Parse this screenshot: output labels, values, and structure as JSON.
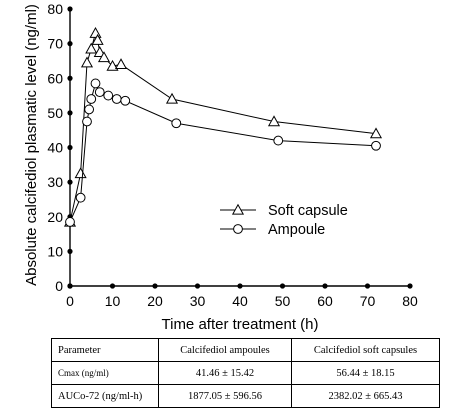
{
  "chart_data": {
    "type": "line",
    "xlabel": "Time after treatment (h)",
    "ylabel": "Absolute calcifediol plasmatic level (ng/ml)",
    "xlim": [
      0,
      80
    ],
    "ylim": [
      0,
      80
    ],
    "x_ticks": [
      0,
      10,
      20,
      30,
      40,
      50,
      60,
      70,
      80
    ],
    "y_ticks": [
      0,
      10,
      20,
      30,
      40,
      50,
      60,
      70,
      80
    ],
    "grid": false,
    "legend_position": "right",
    "series": [
      {
        "name": "Soft capsule",
        "marker": "triangle",
        "points": [
          [
            0,
            18.5
          ],
          [
            2.5,
            32.5
          ],
          [
            4,
            64.5
          ],
          [
            5,
            68.5
          ],
          [
            6,
            73
          ],
          [
            6.5,
            71
          ],
          [
            7,
            67.5
          ],
          [
            8,
            66
          ],
          [
            10,
            63.5
          ],
          [
            12,
            64
          ],
          [
            24,
            54
          ],
          [
            48,
            47.5
          ],
          [
            72,
            44
          ]
        ]
      },
      {
        "name": "Ampoule",
        "marker": "circle",
        "points": [
          [
            0,
            18.5
          ],
          [
            2.5,
            25.5
          ],
          [
            4,
            47.5
          ],
          [
            4.5,
            51
          ],
          [
            5,
            54
          ],
          [
            6,
            58.5
          ],
          [
            7,
            56
          ],
          [
            9,
            55
          ],
          [
            11,
            54
          ],
          [
            13,
            53.5
          ],
          [
            25,
            47
          ],
          [
            49,
            42
          ],
          [
            72,
            40.5
          ]
        ]
      }
    ]
  },
  "table": {
    "headers": [
      "Parameter",
      "Calcifediol  ampoules",
      "Calcifediol  soft  capsules"
    ],
    "rows": [
      {
        "param": "Cmax  (ng/ml)",
        "ampoules": "41.46  ±  15.42",
        "soft_capsules": "56.44  ±  18.15"
      },
      {
        "param": "AUCo-72 (ng/ml-h)",
        "ampoules": "1877.05  ±  596.56",
        "soft_capsules": "2382.02  ±  665.43"
      }
    ]
  }
}
